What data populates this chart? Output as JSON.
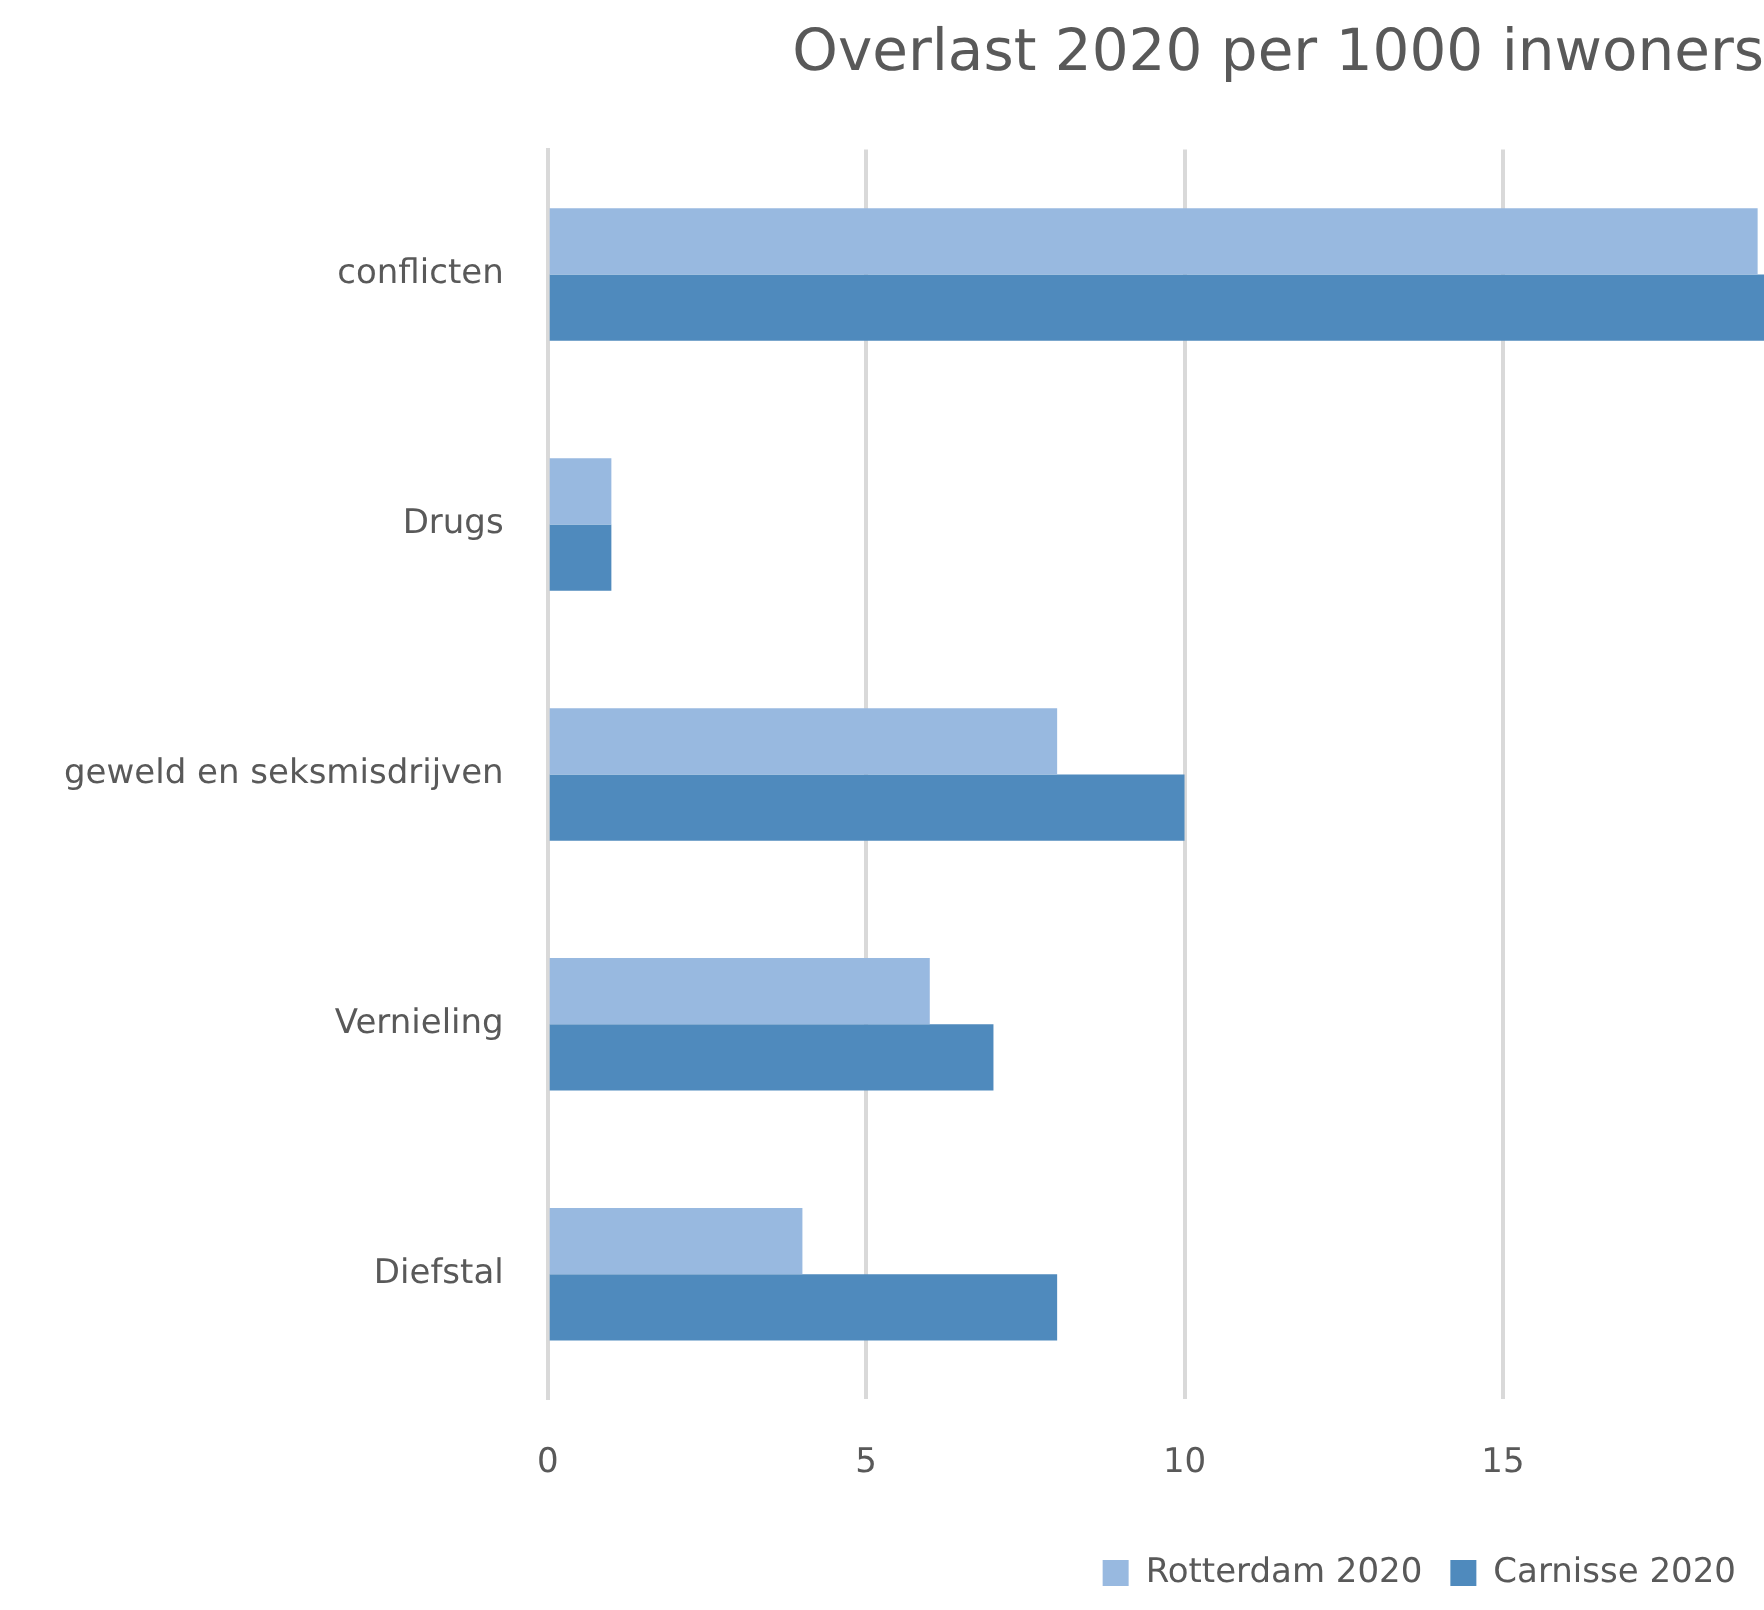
{
  "chart_data": {
    "type": "bar",
    "orientation": "horizontal",
    "title": "Overlast 2020 per 1000 inwoners",
    "categories": [
      "conflicten",
      "Drugs",
      "geweld en seksmisdrijven",
      "Vernieling",
      "Diefstal"
    ],
    "series": [
      {
        "name": "Rotterdam 2020",
        "color": "#98b9e0",
        "values": [
          19,
          1,
          8,
          6,
          4
        ]
      },
      {
        "name": "Carnisse 2020",
        "color": "#4f8abd",
        "values": [
          19.1,
          1,
          10,
          7,
          8
        ]
      }
    ],
    "xlim": [
      0,
      19.1
    ],
    "xticks": [
      0,
      5,
      10,
      15
    ],
    "grid": "x",
    "legend": "bottom right"
  }
}
